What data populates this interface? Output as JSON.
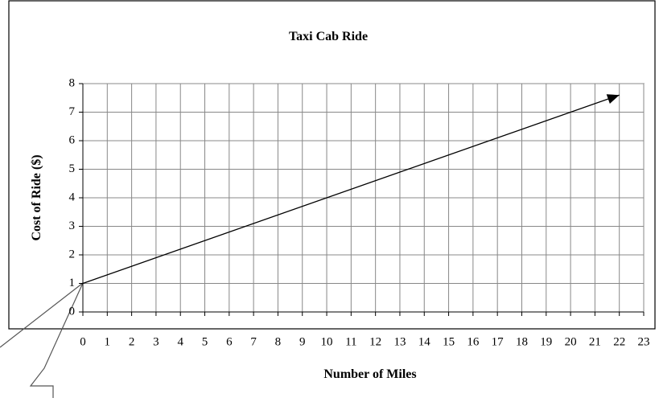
{
  "chart_data": {
    "type": "line",
    "title": "Taxi Cab Ride",
    "x_label": "Number of Miles",
    "y_label": "Cost of Ride ($)",
    "x": [
      0,
      22
    ],
    "values": [
      1,
      7.6
    ],
    "color": "#000000",
    "xlim": [
      0,
      23
    ],
    "xticks": [
      0,
      1,
      2,
      3,
      4,
      5,
      6,
      7,
      8,
      9,
      10,
      11,
      12,
      13,
      14,
      15,
      16,
      17,
      18,
      19,
      20,
      21,
      22,
      23
    ],
    "ylim": [
      0,
      8
    ],
    "yticks": [
      0,
      1,
      2,
      3,
      4,
      5,
      6,
      7,
      8
    ],
    "grid": true,
    "arrow": true
  }
}
